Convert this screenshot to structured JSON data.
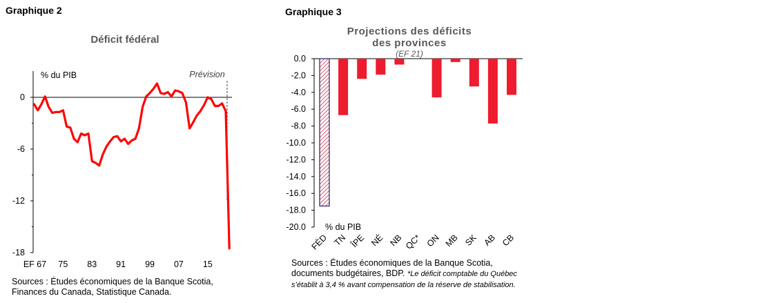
{
  "chart_data": [
    {
      "type": "line",
      "label": "Graphique 2",
      "title": "Déficit fédéral",
      "ylabel": "% du PIB",
      "annotation": "Prévision",
      "ylim": [
        -18,
        3
      ],
      "yticks": [
        0,
        -6,
        -12,
        -18
      ],
      "xticks": [
        "EF 67",
        "75",
        "83",
        "91",
        "99",
        "07",
        "15"
      ],
      "x": [
        1967,
        1968,
        1969,
        1970,
        1971,
        1972,
        1973,
        1974,
        1975,
        1976,
        1977,
        1978,
        1979,
        1980,
        1981,
        1982,
        1983,
        1984,
        1985,
        1986,
        1987,
        1988,
        1989,
        1990,
        1991,
        1992,
        1993,
        1994,
        1995,
        1996,
        1997,
        1998,
        1999,
        2000,
        2001,
        2002,
        2003,
        2004,
        2005,
        2006,
        2007,
        2008,
        2009,
        2010,
        2011,
        2012,
        2013,
        2014,
        2015,
        2016,
        2017,
        2018,
        2019,
        2020,
        2021
      ],
      "values": [
        -0.8,
        -1.5,
        -0.8,
        0.1,
        -1.1,
        -1.8,
        -1.7,
        -1.7,
        -1.5,
        -3.4,
        -3.5,
        -4.8,
        -5.2,
        -4.2,
        -4.4,
        -4.2,
        -7.4,
        -7.6,
        -7.9,
        -6.6,
        -5.7,
        -5.1,
        -4.6,
        -4.5,
        -5.1,
        -4.8,
        -5.4,
        -5.0,
        -4.8,
        -3.6,
        -1.1,
        0.1,
        0.5,
        1.0,
        1.6,
        0.5,
        0.4,
        0.6,
        0.1,
        0.8,
        0.7,
        0.5,
        -0.6,
        -3.6,
        -2.9,
        -2.1,
        -1.6,
        -0.9,
        0.0,
        -0.2,
        -1.0,
        -1.0,
        -0.7,
        -1.6,
        -17.5
      ],
      "forecast_start": 2020,
      "line_color": "#ff0000",
      "source": "Sources : Études économiques de la Banque Scotia, Finances du Canada, Statistique Canada."
    },
    {
      "type": "bar",
      "label": "Graphique 3",
      "title_lines": [
        "Projections des déficits",
        "des provinces"
      ],
      "subtitle": "(EF 21)",
      "ylabel": "% du PIB",
      "ylim": [
        -20,
        0
      ],
      "yticks": [
        "0.0",
        "-2.0",
        "-4.0",
        "-6.0",
        "-8.0",
        "-10.0",
        "-12.0",
        "-14.0",
        "-16.0",
        "-18.0",
        "-20.0"
      ],
      "categories": [
        "FÉD",
        "TN",
        "ÎPE",
        "NÉ",
        "NB",
        "QC*",
        "ON",
        "MB",
        "SK",
        "AB",
        "CB"
      ],
      "values": [
        -17.5,
        -6.7,
        -2.4,
        -1.9,
        -0.7,
        0.0,
        -4.6,
        -0.4,
        -3.3,
        -7.7,
        -4.3
      ],
      "bar_color": "#ed1c2e",
      "fed_hatch_color": "#1f1f7a",
      "source_plain": "Sources : Études économiques de la Banque Scotia, documents budgétaires, BDP.",
      "source_note": "*Le déficit comptable du Québec s’établit à 3,4 % avant compensation de la réserve de stabilisation."
    }
  ]
}
